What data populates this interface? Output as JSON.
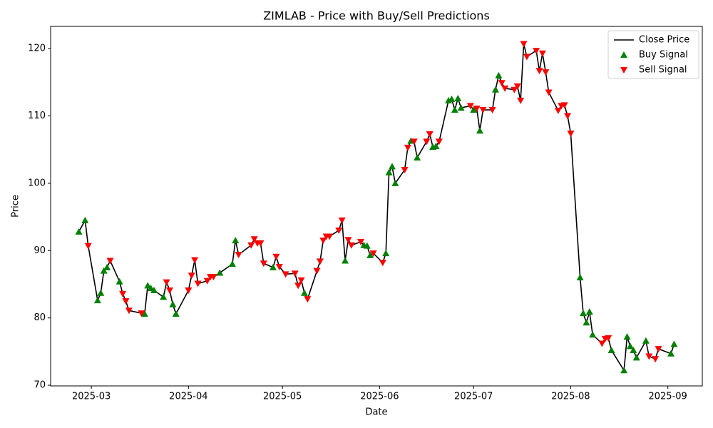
{
  "chart_data": {
    "type": "line",
    "title": "ZIMLAB - Price with Buy/Sell Predictions",
    "x_label": "Date",
    "y_label": "Price",
    "legend": "upper right",
    "xlim": [
      "2025-02-16",
      "2025-09-12"
    ],
    "xticks": [
      {
        "value": "2025-03-01",
        "label": "2025-03"
      },
      {
        "value": "2025-04-01",
        "label": "2025-04"
      },
      {
        "value": "2025-05-01",
        "label": "2025-05"
      },
      {
        "value": "2025-06-01",
        "label": "2025-06"
      },
      {
        "value": "2025-07-01",
        "label": "2025-07"
      },
      {
        "value": "2025-08-01",
        "label": "2025-08"
      },
      {
        "value": "2025-09-01",
        "label": "2025-09"
      }
    ],
    "ylim": [
      69.9,
      123.3
    ],
    "yticks": [
      70,
      80,
      90,
      100,
      110,
      120
    ],
    "series": [
      {
        "name": "Close Price",
        "type": "line",
        "color": "#000000",
        "x": [
          "2025-02-25",
          "2025-02-27",
          "2025-02-28",
          "2025-03-03",
          "2025-03-04",
          "2025-03-05",
          "2025-03-06",
          "2025-03-07",
          "2025-03-10",
          "2025-03-11",
          "2025-03-12",
          "2025-03-13",
          "2025-03-17",
          "2025-03-18",
          "2025-03-19",
          "2025-03-20",
          "2025-03-21",
          "2025-03-24",
          "2025-03-25",
          "2025-03-26",
          "2025-03-27",
          "2025-03-28",
          "2025-04-01",
          "2025-04-02",
          "2025-04-03",
          "2025-04-04",
          "2025-04-07",
          "2025-04-08",
          "2025-04-09",
          "2025-04-11",
          "2025-04-15",
          "2025-04-16",
          "2025-04-17",
          "2025-04-21",
          "2025-04-22",
          "2025-04-23",
          "2025-04-24",
          "2025-04-25",
          "2025-04-28",
          "2025-04-29",
          "2025-04-30",
          "2025-05-02",
          "2025-05-05",
          "2025-05-06",
          "2025-05-07",
          "2025-05-08",
          "2025-05-09",
          "2025-05-12",
          "2025-05-13",
          "2025-05-14",
          "2025-05-15",
          "2025-05-16",
          "2025-05-19",
          "2025-05-20",
          "2025-05-21",
          "2025-05-22",
          "2025-05-23",
          "2025-05-26",
          "2025-05-27",
          "2025-05-28",
          "2025-05-29",
          "2025-05-30",
          "2025-06-02",
          "2025-06-03",
          "2025-06-04",
          "2025-06-05",
          "2025-06-06",
          "2025-06-09",
          "2025-06-10",
          "2025-06-11",
          "2025-06-12",
          "2025-06-13",
          "2025-06-16",
          "2025-06-17",
          "2025-06-18",
          "2025-06-19",
          "2025-06-20",
          "2025-06-23",
          "2025-06-24",
          "2025-06-25",
          "2025-06-26",
          "2025-06-27",
          "2025-06-30",
          "2025-07-01",
          "2025-07-02",
          "2025-07-03",
          "2025-07-04",
          "2025-07-07",
          "2025-07-08",
          "2025-07-09",
          "2025-07-10",
          "2025-07-11",
          "2025-07-14",
          "2025-07-15",
          "2025-07-16",
          "2025-07-17",
          "2025-07-18",
          "2025-07-21",
          "2025-07-22",
          "2025-07-23",
          "2025-07-24",
          "2025-07-25",
          "2025-07-28",
          "2025-07-29",
          "2025-07-30",
          "2025-07-31",
          "2025-08-01",
          "2025-08-04",
          "2025-08-05",
          "2025-08-06",
          "2025-08-07",
          "2025-08-08",
          "2025-08-11",
          "2025-08-12",
          "2025-08-13",
          "2025-08-14",
          "2025-08-18",
          "2025-08-19",
          "2025-08-20",
          "2025-08-21",
          "2025-08-22",
          "2025-08-25",
          "2025-08-26",
          "2025-08-28",
          "2025-08-29",
          "2025-09-02",
          "2025-09-03"
        ],
        "values": [
          92.8,
          94.5,
          90.7,
          82.6,
          83.7,
          87.0,
          87.5,
          88.5,
          85.4,
          83.6,
          82.5,
          81.1,
          80.7,
          80.6,
          84.8,
          84.4,
          84.1,
          83.1,
          85.3,
          84.1,
          82.0,
          80.6,
          84.1,
          86.3,
          88.6,
          85.1,
          85.5,
          86.1,
          86.1,
          86.7,
          88.0,
          91.5,
          89.4,
          90.8,
          91.7,
          91.1,
          91.1,
          88.1,
          87.5,
          89.1,
          87.6,
          86.5,
          86.6,
          84.8,
          85.6,
          83.7,
          82.8,
          87.0,
          88.4,
          91.5,
          92.1,
          92.1,
          93.0,
          94.5,
          88.5,
          91.6,
          90.8,
          91.3,
          90.8,
          90.7,
          89.3,
          89.6,
          88.2,
          89.6,
          101.6,
          102.5,
          100.0,
          102.0,
          105.3,
          106.3,
          106.2,
          103.8,
          106.2,
          107.3,
          105.4,
          105.5,
          106.2,
          112.3,
          112.5,
          110.9,
          112.6,
          111.2,
          111.5,
          110.9,
          111.1,
          107.8,
          110.9,
          110.9,
          113.9,
          116.0,
          114.9,
          114.1,
          113.9,
          114.4,
          112.3,
          120.7,
          118.8,
          119.7,
          116.7,
          119.3,
          116.5,
          113.5,
          110.8,
          111.5,
          111.6,
          110.0,
          107.4,
          86.0,
          80.7,
          79.3,
          80.9,
          77.5,
          76.2,
          76.9,
          77.0,
          75.2,
          72.2,
          77.2,
          75.8,
          75.2,
          74.1,
          76.6,
          74.3,
          73.9,
          75.4,
          74.7,
          76.1
        ]
      },
      {
        "name": "Buy Signal",
        "type": "scatter",
        "marker": "triangle-up",
        "color": "#008000",
        "x": [
          "2025-02-25",
          "2025-02-27",
          "2025-03-03",
          "2025-03-04",
          "2025-03-05",
          "2025-03-06",
          "2025-03-10",
          "2025-03-18",
          "2025-03-19",
          "2025-03-20",
          "2025-03-21",
          "2025-03-24",
          "2025-03-27",
          "2025-03-28",
          "2025-04-11",
          "2025-04-15",
          "2025-04-16",
          "2025-04-28",
          "2025-05-08",
          "2025-05-21",
          "2025-05-27",
          "2025-05-28",
          "2025-05-29",
          "2025-06-03",
          "2025-06-04",
          "2025-06-05",
          "2025-06-06",
          "2025-06-11",
          "2025-06-13",
          "2025-06-18",
          "2025-06-19",
          "2025-06-23",
          "2025-06-24",
          "2025-06-25",
          "2025-06-26",
          "2025-06-27",
          "2025-07-01",
          "2025-07-03",
          "2025-07-08",
          "2025-07-09",
          "2025-08-04",
          "2025-08-05",
          "2025-08-06",
          "2025-08-07",
          "2025-08-08",
          "2025-08-14",
          "2025-08-18",
          "2025-08-19",
          "2025-08-20",
          "2025-08-21",
          "2025-08-22",
          "2025-08-25",
          "2025-09-02",
          "2025-09-03"
        ],
        "values": [
          92.8,
          94.5,
          82.6,
          83.7,
          87.0,
          87.5,
          85.4,
          80.6,
          84.8,
          84.4,
          84.1,
          83.1,
          82.0,
          80.6,
          86.7,
          88.0,
          91.5,
          87.5,
          83.7,
          88.5,
          90.8,
          90.7,
          89.3,
          89.6,
          101.6,
          102.5,
          100.0,
          106.3,
          103.8,
          105.4,
          105.5,
          112.3,
          112.5,
          110.9,
          112.6,
          111.2,
          110.9,
          107.8,
          113.9,
          116.0,
          86.0,
          80.7,
          79.3,
          80.9,
          77.5,
          75.2,
          72.2,
          77.2,
          75.8,
          75.2,
          74.1,
          76.6,
          74.7,
          76.1
        ]
      },
      {
        "name": "Sell Signal",
        "type": "scatter",
        "marker": "triangle-down",
        "color": "#ff0000",
        "x": [
          "2025-02-28",
          "2025-03-07",
          "2025-03-11",
          "2025-03-12",
          "2025-03-13",
          "2025-03-17",
          "2025-03-25",
          "2025-03-26",
          "2025-04-01",
          "2025-04-02",
          "2025-04-03",
          "2025-04-04",
          "2025-04-07",
          "2025-04-08",
          "2025-04-09",
          "2025-04-17",
          "2025-04-21",
          "2025-04-22",
          "2025-04-23",
          "2025-04-24",
          "2025-04-25",
          "2025-04-29",
          "2025-04-30",
          "2025-05-02",
          "2025-05-05",
          "2025-05-06",
          "2025-05-07",
          "2025-05-09",
          "2025-05-12",
          "2025-05-13",
          "2025-05-14",
          "2025-05-15",
          "2025-05-16",
          "2025-05-19",
          "2025-05-20",
          "2025-05-22",
          "2025-05-23",
          "2025-05-26",
          "2025-05-30",
          "2025-06-02",
          "2025-06-09",
          "2025-06-10",
          "2025-06-12",
          "2025-06-16",
          "2025-06-17",
          "2025-06-20",
          "2025-06-30",
          "2025-07-02",
          "2025-07-04",
          "2025-07-07",
          "2025-07-10",
          "2025-07-11",
          "2025-07-14",
          "2025-07-15",
          "2025-07-16",
          "2025-07-17",
          "2025-07-18",
          "2025-07-21",
          "2025-07-22",
          "2025-07-23",
          "2025-07-24",
          "2025-07-25",
          "2025-07-28",
          "2025-07-29",
          "2025-07-30",
          "2025-07-31",
          "2025-08-01",
          "2025-08-11",
          "2025-08-12",
          "2025-08-13",
          "2025-08-26",
          "2025-08-28",
          "2025-08-29"
        ],
        "values": [
          90.7,
          88.5,
          83.6,
          82.5,
          81.1,
          80.7,
          85.3,
          84.1,
          84.1,
          86.3,
          88.6,
          85.1,
          85.5,
          86.1,
          86.1,
          89.4,
          90.8,
          91.7,
          91.1,
          91.1,
          88.1,
          89.1,
          87.6,
          86.5,
          86.6,
          84.8,
          85.6,
          82.8,
          87.0,
          88.4,
          91.5,
          92.1,
          92.1,
          93.0,
          94.5,
          91.6,
          90.8,
          91.3,
          89.6,
          88.2,
          102.0,
          105.3,
          106.2,
          106.2,
          107.3,
          106.2,
          111.5,
          111.1,
          110.9,
          110.9,
          114.9,
          114.1,
          113.9,
          114.4,
          112.3,
          120.7,
          118.8,
          119.7,
          116.7,
          119.3,
          116.5,
          113.5,
          110.8,
          111.5,
          111.6,
          110.0,
          107.4,
          76.2,
          76.9,
          77.0,
          74.3,
          73.9,
          75.4
        ]
      }
    ]
  }
}
